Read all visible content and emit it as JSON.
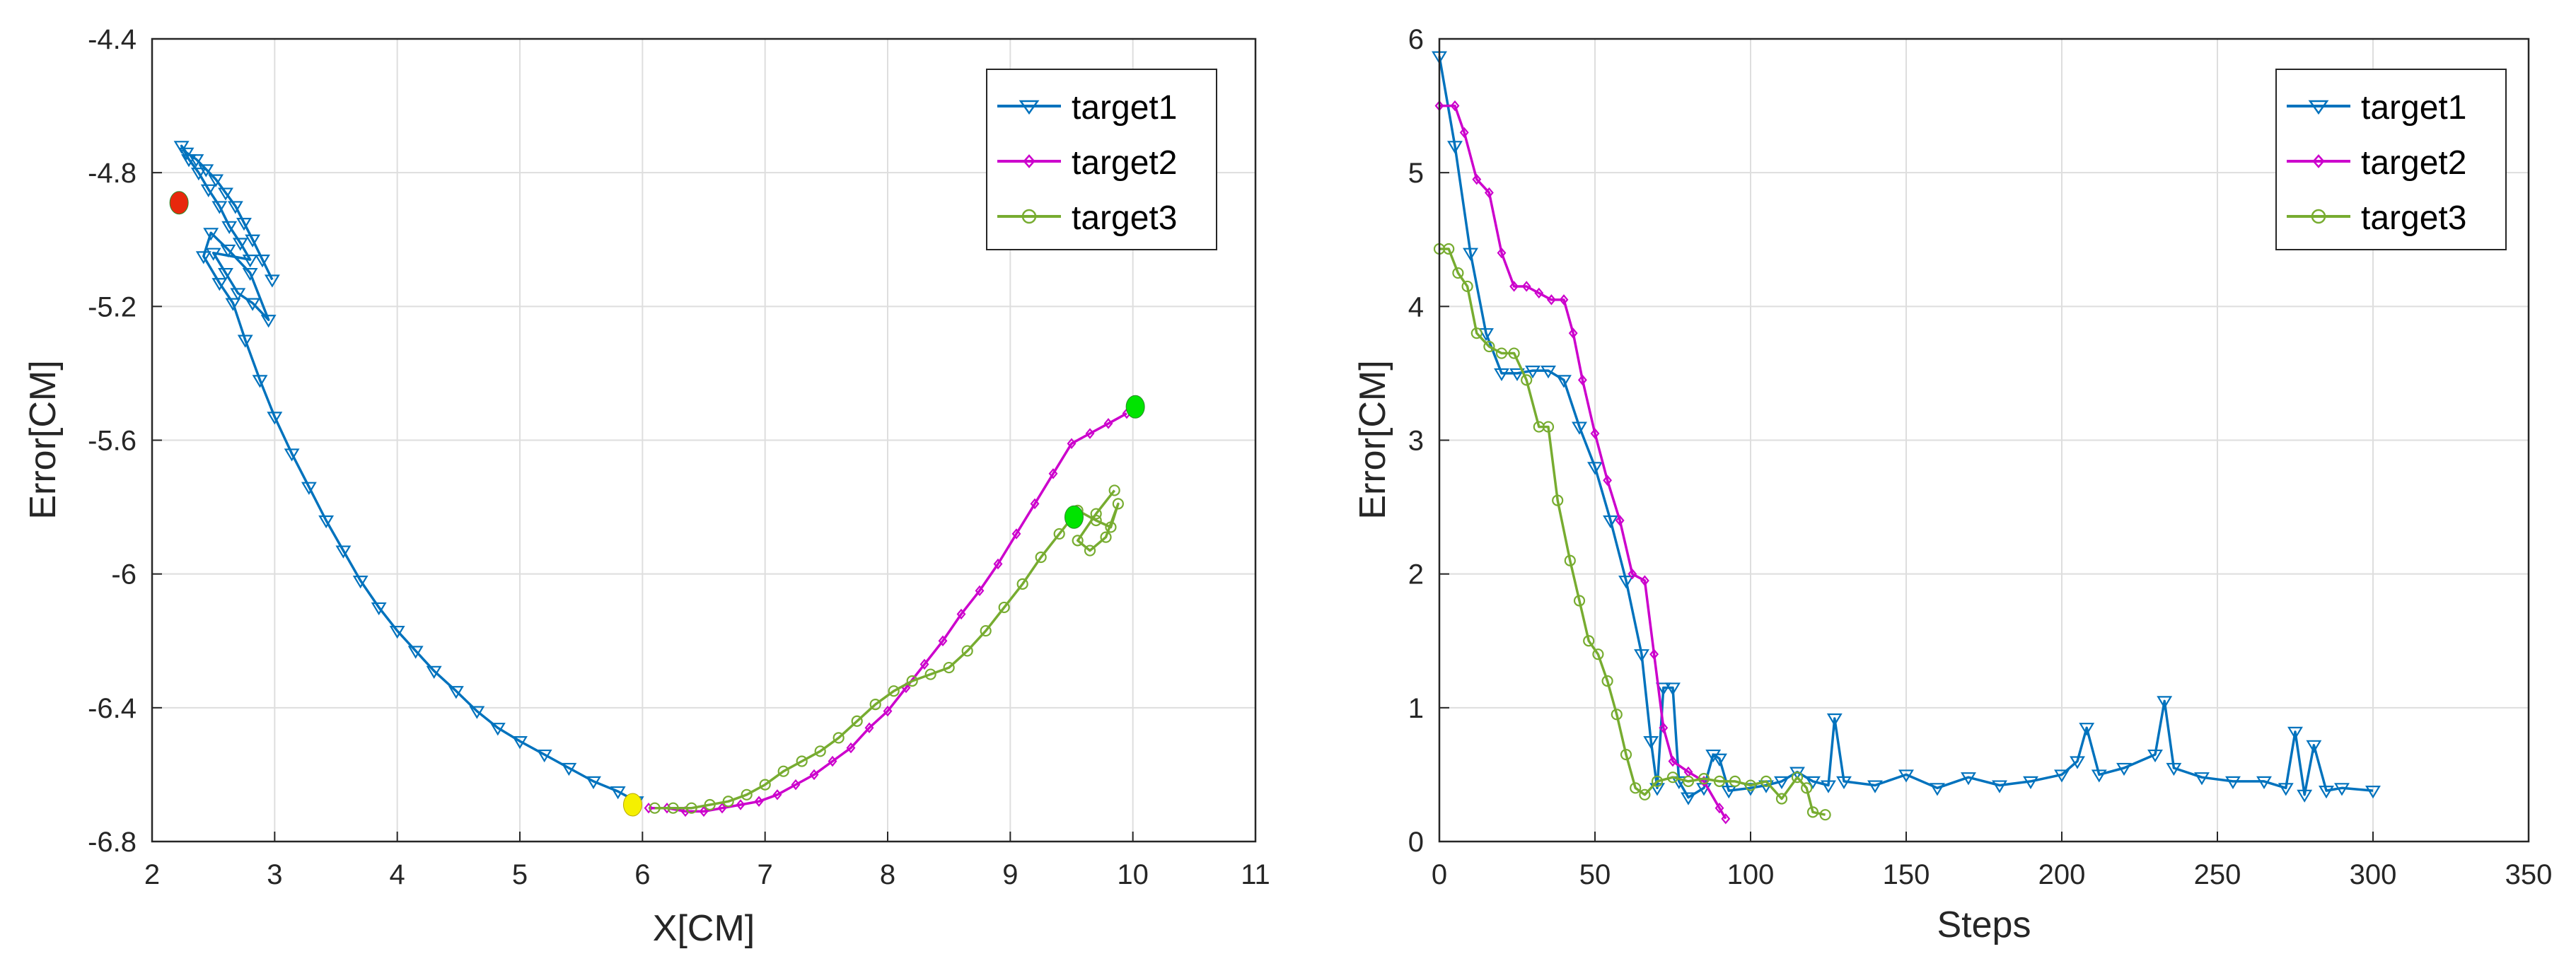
{
  "chart_data": [
    {
      "type": "line",
      "panel": "left",
      "title": "",
      "xlabel": "X[CM]",
      "ylabel": "Error[CM]",
      "xlim": [
        2,
        11
      ],
      "ylim": [
        -6.8,
        -4.4
      ],
      "xticks": [
        2,
        3,
        4,
        5,
        6,
        7,
        8,
        9,
        10,
        11
      ],
      "yticks": [
        -4.4,
        -4.8,
        -5.2,
        -5.6,
        -6,
        -6.4,
        -6.8
      ],
      "xtick_labels": [
        "2",
        "3",
        "4",
        "5",
        "6",
        "7",
        "8",
        "9",
        "10",
        "11"
      ],
      "ytick_labels": [
        "-4.4",
        "-4.8",
        "-5.2",
        "-5.6",
        "-6",
        "-6.4",
        "-6.8"
      ],
      "grid": true,
      "legend": {
        "placement": "top-right",
        "entries": [
          "target1",
          "target2",
          "target3"
        ]
      },
      "series": [
        {
          "name": "target1",
          "color": "#0072BD",
          "marker": "triangle-down",
          "points": [
            [
              2.98,
              -5.12
            ],
            [
              2.9,
              -5.06
            ],
            [
              2.82,
              -5.0
            ],
            [
              2.75,
              -4.95
            ],
            [
              2.68,
              -4.9
            ],
            [
              2.6,
              -4.86
            ],
            [
              2.52,
              -4.82
            ],
            [
              2.44,
              -4.79
            ],
            [
              2.36,
              -4.76
            ],
            [
              2.28,
              -4.74
            ],
            [
              2.24,
              -4.72
            ],
            [
              2.3,
              -4.76
            ],
            [
              2.38,
              -4.8
            ],
            [
              2.46,
              -4.85
            ],
            [
              2.55,
              -4.9
            ],
            [
              2.63,
              -4.96
            ],
            [
              2.72,
              -5.01
            ],
            [
              2.8,
              -5.06
            ],
            [
              2.5,
              -5.04
            ],
            [
              2.6,
              -5.1
            ],
            [
              2.7,
              -5.16
            ],
            [
              2.82,
              -5.19
            ],
            [
              2.95,
              -5.24
            ],
            [
              2.8,
              -5.1
            ],
            [
              2.62,
              -5.03
            ],
            [
              2.48,
              -4.98
            ],
            [
              2.42,
              -5.05
            ],
            [
              2.55,
              -5.13
            ],
            [
              2.66,
              -5.19
            ],
            [
              2.76,
              -5.3
            ],
            [
              2.88,
              -5.42
            ],
            [
              3.0,
              -5.53
            ],
            [
              3.14,
              -5.64
            ],
            [
              3.28,
              -5.74
            ],
            [
              3.42,
              -5.84
            ],
            [
              3.56,
              -5.93
            ],
            [
              3.7,
              -6.02
            ],
            [
              3.85,
              -6.1
            ],
            [
              4.0,
              -6.17
            ],
            [
              4.15,
              -6.23
            ],
            [
              4.3,
              -6.29
            ],
            [
              4.48,
              -6.35
            ],
            [
              4.65,
              -6.41
            ],
            [
              4.82,
              -6.46
            ],
            [
              5.0,
              -6.5
            ],
            [
              5.2,
              -6.54
            ],
            [
              5.4,
              -6.58
            ],
            [
              5.6,
              -6.62
            ],
            [
              5.8,
              -6.65
            ],
            [
              5.95,
              -6.68
            ]
          ],
          "start_marker": {
            "x": 2.22,
            "y": -4.89,
            "color": "#e8280c"
          }
        },
        {
          "name": "target2",
          "color": "#CC00CC",
          "marker": "diamond",
          "points": [
            [
              6.05,
              -6.7
            ],
            [
              6.2,
              -6.7
            ],
            [
              6.35,
              -6.71
            ],
            [
              6.5,
              -6.71
            ],
            [
              6.65,
              -6.7
            ],
            [
              6.8,
              -6.69
            ],
            [
              6.95,
              -6.68
            ],
            [
              7.1,
              -6.66
            ],
            [
              7.25,
              -6.63
            ],
            [
              7.4,
              -6.6
            ],
            [
              7.55,
              -6.56
            ],
            [
              7.7,
              -6.52
            ],
            [
              7.85,
              -6.46
            ],
            [
              8.0,
              -6.41
            ],
            [
              8.15,
              -6.34
            ],
            [
              8.3,
              -6.27
            ],
            [
              8.45,
              -6.2
            ],
            [
              8.6,
              -6.12
            ],
            [
              8.75,
              -6.05
            ],
            [
              8.9,
              -5.97
            ],
            [
              9.05,
              -5.88
            ],
            [
              9.2,
              -5.79
            ],
            [
              9.35,
              -5.7
            ],
            [
              9.5,
              -5.61
            ],
            [
              9.65,
              -5.58
            ],
            [
              9.8,
              -5.55
            ],
            [
              9.95,
              -5.52
            ]
          ],
          "start_marker": {
            "x": 10.02,
            "y": -5.5,
            "color": "#00e400"
          }
        },
        {
          "name": "target3",
          "color": "#77AC30",
          "marker": "circle",
          "points": [
            [
              6.1,
              -6.7
            ],
            [
              6.25,
              -6.7
            ],
            [
              6.4,
              -6.7
            ],
            [
              6.55,
              -6.69
            ],
            [
              6.7,
              -6.68
            ],
            [
              6.85,
              -6.66
            ],
            [
              7.0,
              -6.63
            ],
            [
              7.15,
              -6.59
            ],
            [
              7.3,
              -6.56
            ],
            [
              7.45,
              -6.53
            ],
            [
              7.6,
              -6.49
            ],
            [
              7.75,
              -6.44
            ],
            [
              7.9,
              -6.39
            ],
            [
              8.05,
              -6.35
            ],
            [
              8.2,
              -6.32
            ],
            [
              8.35,
              -6.3
            ],
            [
              8.5,
              -6.28
            ],
            [
              8.65,
              -6.23
            ],
            [
              8.8,
              -6.17
            ],
            [
              8.95,
              -6.1
            ],
            [
              9.1,
              -6.03
            ],
            [
              9.25,
              -5.95
            ],
            [
              9.4,
              -5.88
            ],
            [
              9.55,
              -5.81
            ],
            [
              9.7,
              -5.84
            ],
            [
              9.82,
              -5.86
            ],
            [
              9.88,
              -5.79
            ],
            [
              9.78,
              -5.89
            ],
            [
              9.65,
              -5.93
            ],
            [
              9.55,
              -5.9
            ],
            [
              9.7,
              -5.82
            ],
            [
              9.85,
              -5.75
            ]
          ],
          "start_marker": {
            "x": 9.52,
            "y": -5.83,
            "color": "#00e400"
          }
        }
      ],
      "end_marker": {
        "x": 5.92,
        "y": -6.69,
        "color": "#f5f000"
      }
    },
    {
      "type": "line",
      "panel": "right",
      "title": "",
      "xlabel": "Steps",
      "ylabel": "Error[CM]",
      "xlim": [
        0,
        350
      ],
      "ylim": [
        0,
        6
      ],
      "xticks": [
        0,
        50,
        100,
        150,
        200,
        250,
        300,
        350
      ],
      "yticks": [
        0,
        1,
        2,
        3,
        4,
        5,
        6
      ],
      "xtick_labels": [
        "0",
        "50",
        "100",
        "150",
        "200",
        "250",
        "300",
        "350"
      ],
      "ytick_labels": [
        "0",
        "1",
        "2",
        "3",
        "4",
        "5",
        "6"
      ],
      "grid": true,
      "legend": {
        "placement": "top-right",
        "entries": [
          "target1",
          "target2",
          "target3"
        ]
      },
      "series": [
        {
          "name": "target1",
          "color": "#0072BD",
          "marker": "triangle-down",
          "points": [
            [
              0,
              5.87
            ],
            [
              5,
              5.2
            ],
            [
              10,
              4.4
            ],
            [
              15,
              3.8
            ],
            [
              20,
              3.5
            ],
            [
              25,
              3.5
            ],
            [
              30,
              3.52
            ],
            [
              35,
              3.52
            ],
            [
              40,
              3.45
            ],
            [
              45,
              3.1
            ],
            [
              50,
              2.8
            ],
            [
              55,
              2.4
            ],
            [
              60,
              1.95
            ],
            [
              65,
              1.4
            ],
            [
              68,
              0.75
            ],
            [
              70,
              0.4
            ],
            [
              72,
              1.15
            ],
            [
              75,
              1.15
            ],
            [
              77,
              0.45
            ],
            [
              80,
              0.33
            ],
            [
              85,
              0.4
            ],
            [
              88,
              0.65
            ],
            [
              90,
              0.62
            ],
            [
              93,
              0.38
            ],
            [
              100,
              0.4
            ],
            [
              105,
              0.42
            ],
            [
              110,
              0.45
            ],
            [
              115,
              0.52
            ],
            [
              120,
              0.45
            ],
            [
              125,
              0.42
            ],
            [
              127,
              0.92
            ],
            [
              130,
              0.45
            ],
            [
              140,
              0.42
            ],
            [
              150,
              0.5
            ],
            [
              160,
              0.4
            ],
            [
              170,
              0.48
            ],
            [
              180,
              0.42
            ],
            [
              190,
              0.45
            ],
            [
              200,
              0.5
            ],
            [
              205,
              0.6
            ],
            [
              208,
              0.85
            ],
            [
              212,
              0.5
            ],
            [
              220,
              0.55
            ],
            [
              230,
              0.65
            ],
            [
              233,
              1.05
            ],
            [
              236,
              0.55
            ],
            [
              245,
              0.48
            ],
            [
              255,
              0.45
            ],
            [
              265,
              0.45
            ],
            [
              272,
              0.4
            ],
            [
              275,
              0.82
            ],
            [
              278,
              0.35
            ],
            [
              281,
              0.72
            ],
            [
              285,
              0.38
            ],
            [
              290,
              0.4
            ],
            [
              300,
              0.38
            ]
          ]
        },
        {
          "name": "target2",
          "color": "#CC00CC",
          "marker": "diamond",
          "points": [
            [
              0,
              5.5
            ],
            [
              5,
              5.5
            ],
            [
              8,
              5.3
            ],
            [
              12,
              4.95
            ],
            [
              16,
              4.85
            ],
            [
              20,
              4.4
            ],
            [
              24,
              4.15
            ],
            [
              28,
              4.15
            ],
            [
              32,
              4.1
            ],
            [
              36,
              4.05
            ],
            [
              40,
              4.05
            ],
            [
              43,
              3.8
            ],
            [
              46,
              3.45
            ],
            [
              50,
              3.05
            ],
            [
              54,
              2.7
            ],
            [
              58,
              2.4
            ],
            [
              62,
              2.0
            ],
            [
              66,
              1.95
            ],
            [
              69,
              1.4
            ],
            [
              72,
              0.85
            ],
            [
              75,
              0.6
            ],
            [
              80,
              0.52
            ],
            [
              85,
              0.45
            ],
            [
              90,
              0.25
            ],
            [
              92,
              0.17
            ]
          ]
        },
        {
          "name": "target3",
          "color": "#77AC30",
          "marker": "circle",
          "points": [
            [
              0,
              4.43
            ],
            [
              3,
              4.43
            ],
            [
              6,
              4.25
            ],
            [
              9,
              4.15
            ],
            [
              12,
              3.8
            ],
            [
              16,
              3.7
            ],
            [
              20,
              3.65
            ],
            [
              24,
              3.65
            ],
            [
              28,
              3.45
            ],
            [
              32,
              3.1
            ],
            [
              35,
              3.1
            ],
            [
              38,
              2.55
            ],
            [
              42,
              2.1
            ],
            [
              45,
              1.8
            ],
            [
              48,
              1.5
            ],
            [
              51,
              1.4
            ],
            [
              54,
              1.2
            ],
            [
              57,
              0.95
            ],
            [
              60,
              0.65
            ],
            [
              63,
              0.4
            ],
            [
              66,
              0.35
            ],
            [
              70,
              0.45
            ],
            [
              75,
              0.48
            ],
            [
              80,
              0.45
            ],
            [
              85,
              0.47
            ],
            [
              90,
              0.45
            ],
            [
              95,
              0.45
            ],
            [
              100,
              0.42
            ],
            [
              105,
              0.45
            ],
            [
              110,
              0.32
            ],
            [
              115,
              0.48
            ],
            [
              118,
              0.4
            ],
            [
              120,
              0.22
            ],
            [
              124,
              0.2
            ]
          ]
        }
      ]
    }
  ]
}
